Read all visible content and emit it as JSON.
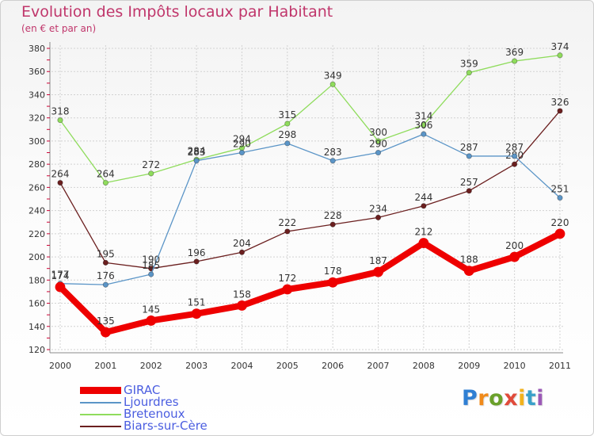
{
  "chart_data": {
    "type": "line",
    "title": "Evolution des Impôts locaux par Habitant",
    "subtitle": "(en € et par an)",
    "categories": [
      "2000",
      "2001",
      "2002",
      "2003",
      "2004",
      "2005",
      "2006",
      "2007",
      "2008",
      "2009",
      "2010",
      "2011"
    ],
    "ylim": [
      120,
      380
    ],
    "yticks": [
      120,
      140,
      160,
      180,
      200,
      220,
      240,
      260,
      280,
      300,
      320,
      340,
      360,
      380
    ],
    "grid": true,
    "legend_position": "bottom-left",
    "series": [
      {
        "name": "GIRAC",
        "color": "#ee0000",
        "emphasis": true,
        "values": [
          174,
          135,
          145,
          151,
          158,
          172,
          178,
          187,
          212,
          188,
          200,
          220
        ]
      },
      {
        "name": "Ljourdres",
        "color": "#5b95c7",
        "values": [
          177,
          176,
          185,
          283,
          290,
          298,
          283,
          290,
          306,
          287,
          287,
          251
        ]
      },
      {
        "name": "Bretenoux",
        "color": "#8fdc5c",
        "values": [
          318,
          264,
          272,
          284,
          294,
          315,
          349,
          300,
          314,
          359,
          369,
          374
        ]
      },
      {
        "name": "Biars-sur-Cère",
        "color": "#6b1f1f",
        "values": [
          264,
          195,
          190,
          196,
          204,
          222,
          228,
          234,
          244,
          257,
          280,
          326
        ]
      }
    ]
  },
  "brand": {
    "letters": [
      "P",
      "r",
      "o",
      "x",
      "i",
      "t",
      "i"
    ],
    "colors": [
      "#2f7fd3",
      "#f08a1a",
      "#6aa02a",
      "#e04a3a",
      "#f2b21d",
      "#3aa0c9",
      "#9b59b6"
    ]
  }
}
